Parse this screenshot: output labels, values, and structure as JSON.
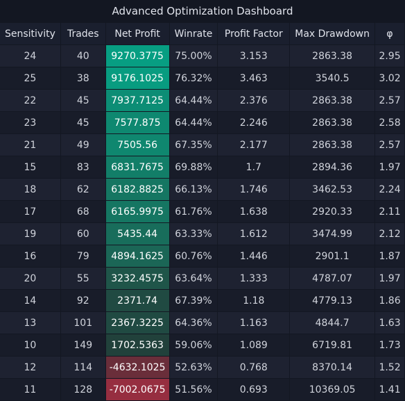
{
  "title": "Advanced Optimization Dashboard",
  "columns": [
    "Sensitivity",
    "Trades",
    "Net Profit",
    "Winrate",
    "Profit Factor",
    "Max Drawdown",
    "φ"
  ],
  "rows": [
    {
      "sensitivity": "24",
      "trades": "40",
      "net_profit": "9270.3775",
      "winrate": "75.00%",
      "profit_factor": "3.153",
      "max_drawdown": "2863.38",
      "phi": "2.95",
      "np_color": "#079e82"
    },
    {
      "sensitivity": "25",
      "trades": "38",
      "net_profit": "9176.1025",
      "winrate": "76.32%",
      "profit_factor": "3.463",
      "max_drawdown": "3540.5",
      "phi": "3.02",
      "np_color": "#089c80"
    },
    {
      "sensitivity": "22",
      "trades": "45",
      "net_profit": "7937.7125",
      "winrate": "64.44%",
      "profit_factor": "2.376",
      "max_drawdown": "2863.38",
      "phi": "2.57",
      "np_color": "#0c8d75"
    },
    {
      "sensitivity": "23",
      "trades": "45",
      "net_profit": "7577.875",
      "winrate": "64.44%",
      "profit_factor": "2.246",
      "max_drawdown": "2863.38",
      "phi": "2.58",
      "np_color": "#0e8870"
    },
    {
      "sensitivity": "21",
      "trades": "49",
      "net_profit": "7505.56",
      "winrate": "67.35%",
      "profit_factor": "2.177",
      "max_drawdown": "2863.38",
      "phi": "2.57",
      "np_color": "#0f876f"
    },
    {
      "sensitivity": "15",
      "trades": "83",
      "net_profit": "6831.7675",
      "winrate": "69.88%",
      "profit_factor": "1.7",
      "max_drawdown": "2894.36",
      "phi": "1.97",
      "np_color": "#127e68"
    },
    {
      "sensitivity": "18",
      "trades": "62",
      "net_profit": "6182.8825",
      "winrate": "66.13%",
      "profit_factor": "1.746",
      "max_drawdown": "3462.53",
      "phi": "2.24",
      "np_color": "#157662"
    },
    {
      "sensitivity": "17",
      "trades": "68",
      "net_profit": "6165.9975",
      "winrate": "61.76%",
      "profit_factor": "1.638",
      "max_drawdown": "2920.33",
      "phi": "2.11",
      "np_color": "#157662"
    },
    {
      "sensitivity": "19",
      "trades": "60",
      "net_profit": "5435.44",
      "winrate": "63.33%",
      "profit_factor": "1.612",
      "max_drawdown": "3474.99",
      "phi": "2.12",
      "np_color": "#186d5b"
    },
    {
      "sensitivity": "16",
      "trades": "79",
      "net_profit": "4894.1625",
      "winrate": "60.76%",
      "profit_factor": "1.446",
      "max_drawdown": "2901.1",
      "phi": "1.87",
      "np_color": "#1b6656"
    },
    {
      "sensitivity": "20",
      "trades": "55",
      "net_profit": "3232.4575",
      "winrate": "63.64%",
      "profit_factor": "1.333",
      "max_drawdown": "4787.07",
      "phi": "1.97",
      "np_color": "#1f5549"
    },
    {
      "sensitivity": "14",
      "trades": "92",
      "net_profit": "2371.74",
      "winrate": "67.39%",
      "profit_factor": "1.18",
      "max_drawdown": "4779.13",
      "phi": "1.86",
      "np_color": "#204a42"
    },
    {
      "sensitivity": "13",
      "trades": "101",
      "net_profit": "2367.3225",
      "winrate": "64.36%",
      "profit_factor": "1.163",
      "max_drawdown": "4844.7",
      "phi": "1.63",
      "np_color": "#204a42"
    },
    {
      "sensitivity": "10",
      "trades": "149",
      "net_profit": "1702.5363",
      "winrate": "59.06%",
      "profit_factor": "1.089",
      "max_drawdown": "6719.81",
      "phi": "1.73",
      "np_color": "#21413b"
    },
    {
      "sensitivity": "12",
      "trades": "114",
      "net_profit": "-4632.1025",
      "winrate": "52.63%",
      "profit_factor": "0.768",
      "max_drawdown": "8370.14",
      "phi": "1.52",
      "np_color": "#6a2e3a"
    },
    {
      "sensitivity": "11",
      "trades": "128",
      "net_profit": "-7002.0675",
      "winrate": "51.56%",
      "profit_factor": "0.693",
      "max_drawdown": "10369.05",
      "phi": "1.41",
      "np_color": "#962e40"
    }
  ]
}
